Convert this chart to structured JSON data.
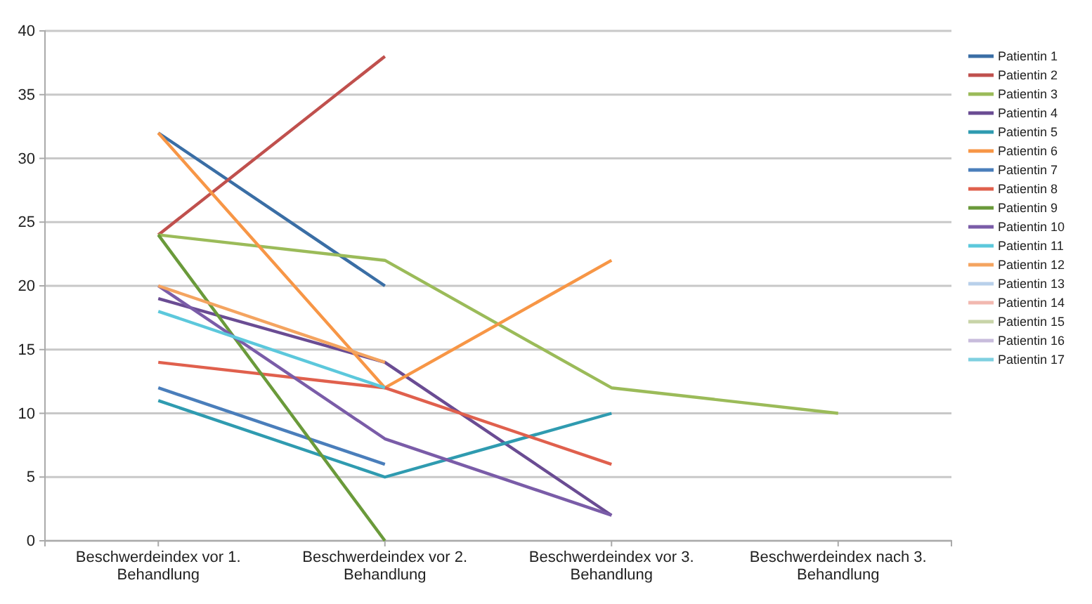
{
  "chart_data": {
    "type": "line",
    "categories": [
      "Beschwerdeindex vor 1. Behandlung",
      "Beschwerdeindex vor 2. Behandlung",
      "Beschwerdeindex vor 3. Behandlung",
      "Beschwerdeindex nach 3. Behandlung"
    ],
    "ylim": [
      0,
      40
    ],
    "yticks": [
      0,
      5,
      10,
      15,
      20,
      25,
      30,
      35,
      40
    ],
    "grid": "y",
    "legend": "right",
    "marker": "none",
    "line_style": "solid",
    "series": [
      {
        "name": "Patientin 1",
        "color": "#3a6ea5",
        "values": [
          32,
          20,
          null,
          null
        ]
      },
      {
        "name": "Patientin 2",
        "color": "#c0504d",
        "values": [
          24,
          38,
          null,
          null
        ]
      },
      {
        "name": "Patientin 3",
        "color": "#9bbb59",
        "values": [
          24,
          22,
          12,
          10
        ]
      },
      {
        "name": "Patientin 4",
        "color": "#6a4c93",
        "values": [
          19,
          14,
          2,
          null
        ]
      },
      {
        "name": "Patientin 5",
        "color": "#2f9bb0",
        "values": [
          11,
          5,
          10,
          null
        ]
      },
      {
        "name": "Patientin 6",
        "color": "#f79646",
        "values": [
          32,
          12,
          22,
          null
        ]
      },
      {
        "name": "Patientin 7",
        "color": "#4a7ebb",
        "values": [
          12,
          6,
          null,
          null
        ]
      },
      {
        "name": "Patientin 8",
        "color": "#e0604d",
        "values": [
          14,
          12,
          6,
          null
        ]
      },
      {
        "name": "Patientin 9",
        "color": "#6a9a3a",
        "values": [
          24,
          0,
          null,
          null
        ]
      },
      {
        "name": "Patientin 10",
        "color": "#7a5ca8",
        "values": [
          20,
          8,
          2,
          null
        ]
      },
      {
        "name": "Patientin 11",
        "color": "#5cc8dc",
        "values": [
          18,
          12,
          null,
          null
        ]
      },
      {
        "name": "Patientin 12",
        "color": "#f4a460",
        "values": [
          20,
          14,
          null,
          null
        ]
      },
      {
        "name": "Patientin 13",
        "color": "#b8d0ea",
        "values": [
          null,
          null,
          null,
          null
        ]
      },
      {
        "name": "Patientin 14",
        "color": "#f2b8b0",
        "values": [
          null,
          null,
          null,
          null
        ]
      },
      {
        "name": "Patientin 15",
        "color": "#c8d4a8",
        "values": [
          null,
          null,
          null,
          null
        ]
      },
      {
        "name": "Patientin 16",
        "color": "#c8bcdc",
        "values": [
          null,
          null,
          null,
          null
        ]
      },
      {
        "name": "Patientin 17",
        "color": "#7fd0e0",
        "values": [
          null,
          null,
          null,
          null
        ]
      }
    ]
  }
}
